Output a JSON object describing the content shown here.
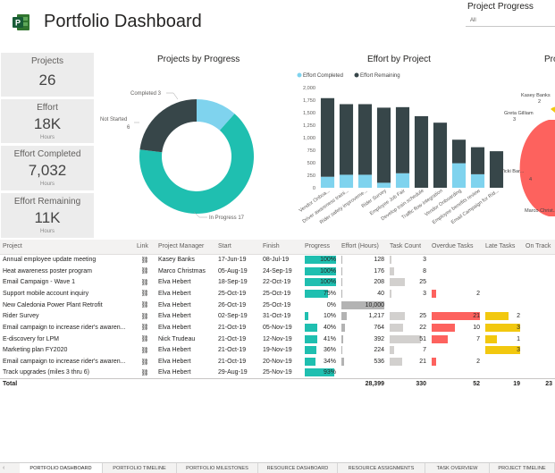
{
  "app": {
    "title": "Portfolio Dashboard"
  },
  "slicer": {
    "title": "Project Progress",
    "value": "All"
  },
  "colors": {
    "teal": "#1fbfb0",
    "dark": "#374649",
    "lightblue": "#7fd3ee",
    "red": "#fd625e",
    "yellow": "#f2c80f",
    "gray": "#b3b3b3"
  },
  "kpis": [
    {
      "label": "Projects",
      "value": "26",
      "unit": ""
    },
    {
      "label": "Effort",
      "value": "18K",
      "unit": "Hours"
    },
    {
      "label": "Effort Completed",
      "value": "7,032",
      "unit": "Hours"
    },
    {
      "label": "Effort Remaining",
      "value": "11K",
      "unit": "Hours"
    }
  ],
  "visuals": {
    "progress_title": "Projects by Progress",
    "effort_title": "Effort by Project",
    "third_title": "Pro"
  },
  "chart_data": [
    {
      "type": "pie",
      "title": "Projects by Progress",
      "categories": [
        "In Progress",
        "Not Started",
        "Completed"
      ],
      "values": [
        17,
        6,
        3
      ],
      "labels": [
        "In Progress 17",
        "Not Started 6",
        "Completed 3"
      ]
    },
    {
      "type": "bar",
      "title": "Effort by Project",
      "categories": [
        "Vendor Onboa...",
        "Driver awareness traini...",
        "Rider safety improveme...",
        "Rider Survey",
        "Employee Job Fair",
        "Develop train schedule",
        "Traffic flow integration",
        "Vendor Onboarding",
        "Employee benefits review",
        "Email Campaign for Rid..."
      ],
      "series": [
        {
          "name": "Effort Completed",
          "values": [
            220,
            260,
            260,
            100,
            290,
            0,
            0,
            490,
            270,
            0
          ]
        },
        {
          "name": "Effort Remaining",
          "values": [
            1570,
            1410,
            1410,
            1500,
            1320,
            1430,
            1300,
            470,
            540,
            730
          ]
        }
      ],
      "yticks": [
        "0",
        "250",
        "500",
        "750",
        "1,000",
        "1,250",
        "1,500",
        "1,750",
        "2,000"
      ],
      "ylim": [
        0,
        2000
      ]
    },
    {
      "type": "bar",
      "title": "Pro",
      "categories": [
        "Kasey Banks",
        "Greta Gilliam",
        "Vicki Bar...",
        "Marco Christ..."
      ],
      "values": [
        2,
        3,
        4,
        0
      ],
      "labels": [
        "2",
        "3",
        "4",
        ""
      ]
    }
  ],
  "table": {
    "headers": [
      "Project",
      "Link",
      "Project Manager",
      "Start",
      "Finish",
      "Progress",
      "Effort (Hours)",
      "Task Count",
      "Overdue Tasks",
      "Late Tasks",
      "On Track"
    ],
    "link_glyph": "⛓",
    "rows": [
      {
        "project": "Annual employee update meeting",
        "manager": "Kasey Banks",
        "start": "17-Jun-19",
        "finish": "08-Jul-19",
        "progress": 100,
        "progress_label": "100%",
        "effort": 128,
        "effort_label": "128",
        "tasks": 3,
        "tasks_label": "3",
        "overdue": 0,
        "overdue_label": "",
        "late": 0,
        "late_label": "",
        "ontrack": 0,
        "ontrack_label": ""
      },
      {
        "project": "Heat awareness poster program",
        "manager": "Marco Christmas",
        "start": "05-Aug-19",
        "finish": "24-Sep-19",
        "progress": 100,
        "progress_label": "100%",
        "effort": 176,
        "effort_label": "176",
        "tasks": 8,
        "tasks_label": "8",
        "overdue": 0,
        "overdue_label": "",
        "late": 0,
        "late_label": "",
        "ontrack": 0,
        "ontrack_label": ""
      },
      {
        "project": "Email Campaign - Wave 1",
        "manager": "Elva Hebert",
        "start": "18-Sep-19",
        "finish": "22-Oct-19",
        "progress": 100,
        "progress_label": "100%",
        "effort": 208,
        "effort_label": "208",
        "tasks": 25,
        "tasks_label": "25",
        "overdue": 0,
        "overdue_label": "",
        "late": 0,
        "late_label": "",
        "ontrack": 0,
        "ontrack_label": ""
      },
      {
        "project": "Support mobile account inquiry",
        "manager": "Elva Hebert",
        "start": "25-Oct-19",
        "finish": "25-Oct-19",
        "progress": 75,
        "progress_label": "75%",
        "effort": 40,
        "effort_label": "40",
        "tasks": 3,
        "tasks_label": "3",
        "overdue": 2,
        "overdue_label": "2",
        "late": 0,
        "late_label": "",
        "ontrack": 0,
        "ontrack_label": ""
      },
      {
        "project": "New Caledonia Power Plant Retrofit",
        "manager": "Elva Hebert",
        "start": "26-Oct-19",
        "finish": "25-Oct-19",
        "progress": 0,
        "progress_label": "0%",
        "effort": 10000,
        "effort_label": "10,000",
        "tasks": 0,
        "tasks_label": "",
        "overdue": 0,
        "overdue_label": "",
        "late": 0,
        "late_label": "",
        "ontrack": 0,
        "ontrack_label": ""
      },
      {
        "project": "Rider Survey",
        "manager": "Elva Hebert",
        "start": "02-Sep-19",
        "finish": "31-Oct-19",
        "progress": 10,
        "progress_label": "10%",
        "effort": 1217,
        "effort_label": "1,217",
        "tasks": 25,
        "tasks_label": "25",
        "overdue": 21,
        "overdue_label": "21",
        "late": 2,
        "late_label": "2",
        "ontrack": 0,
        "ontrack_label": ""
      },
      {
        "project": "Email campaign to increase rider's awaren...",
        "manager": "Elva Hebert",
        "start": "21-Oct-19",
        "finish": "05-Nov-19",
        "progress": 40,
        "progress_label": "40%",
        "effort": 764,
        "effort_label": "764",
        "tasks": 22,
        "tasks_label": "22",
        "overdue": 10,
        "overdue_label": "10",
        "late": 3,
        "late_label": "3",
        "ontrack": 0,
        "ontrack_label": ""
      },
      {
        "project": "E-discovery for LPM",
        "manager": "Nick Trudeau",
        "start": "21-Oct-19",
        "finish": "12-Nov-19",
        "progress": 41,
        "progress_label": "41%",
        "effort": 392,
        "effort_label": "392",
        "tasks": 51,
        "tasks_label": "51",
        "overdue": 7,
        "overdue_label": "7",
        "late": 1,
        "late_label": "1",
        "ontrack": 0,
        "ontrack_label": ""
      },
      {
        "project": "Marketing plan FY2020",
        "manager": "Elva Hebert",
        "start": "21-Oct-19",
        "finish": "19-Nov-19",
        "progress": 36,
        "progress_label": "36%",
        "effort": 224,
        "effort_label": "224",
        "tasks": 7,
        "tasks_label": "7",
        "overdue": 0,
        "overdue_label": "",
        "late": 3,
        "late_label": "3",
        "ontrack": 0,
        "ontrack_label": ""
      },
      {
        "project": "Email campaign to increase rider's awaren...",
        "manager": "Elva Hebert",
        "start": "21-Oct-19",
        "finish": "20-Nov-19",
        "progress": 34,
        "progress_label": "34%",
        "effort": 536,
        "effort_label": "536",
        "tasks": 21,
        "tasks_label": "21",
        "overdue": 2,
        "overdue_label": "2",
        "late": 0,
        "late_label": "",
        "ontrack": 0,
        "ontrack_label": ""
      },
      {
        "project": "Track upgrades (miles 3 thru 6)",
        "manager": "Elva Hebert",
        "start": "29-Aug-19",
        "finish": "25-Nov-19",
        "progress": 93,
        "progress_label": "93%",
        "effort": 0,
        "effort_label": "",
        "tasks": 0,
        "tasks_label": "",
        "overdue": 0,
        "overdue_label": "",
        "late": 0,
        "late_label": "",
        "ontrack": 0,
        "ontrack_label": ""
      }
    ],
    "total": {
      "label": "Total",
      "effort": "28,399",
      "tasks": "330",
      "overdue": "52",
      "late": "19",
      "ontrack": "23"
    }
  },
  "tabs": [
    {
      "label": "PORTFOLIO DASHBOARD",
      "active": true
    },
    {
      "label": "PORTFOLIO TIMELINE",
      "active": false
    },
    {
      "label": "PORTFOLIO MILESTONES",
      "active": false
    },
    {
      "label": "RESOURCE DASHBOARD",
      "active": false
    },
    {
      "label": "RESOURCE ASSIGNMENTS",
      "active": false
    },
    {
      "label": "TASK OVERVIEW",
      "active": false
    },
    {
      "label": "PROJECT TIMELINE",
      "active": false
    }
  ]
}
